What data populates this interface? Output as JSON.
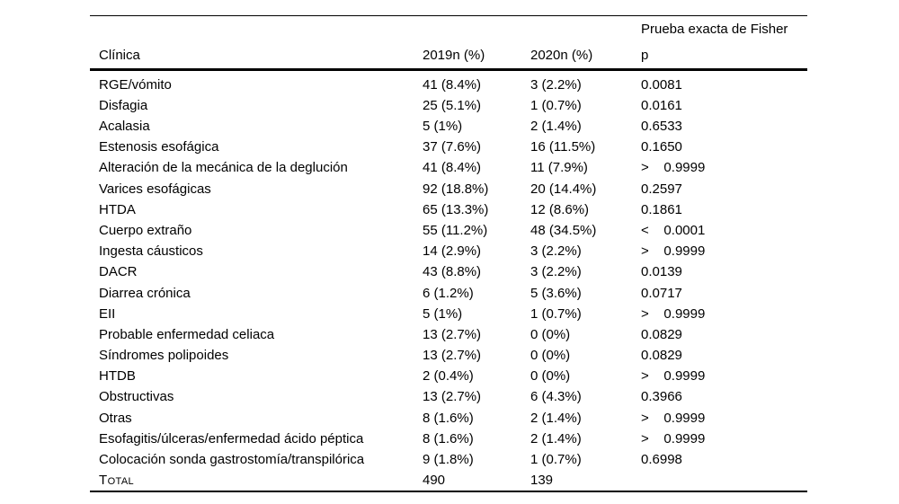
{
  "table": {
    "header": {
      "fisher_label": "Prueba exacta de Fisher",
      "col_clinica": "Clínica",
      "col_2019": "2019n (%)",
      "col_2020": "2020n (%)",
      "col_p": "p"
    },
    "rows": [
      {
        "clinica": "RGE/vómito",
        "y2019": "41 (8.4%)",
        "y2020": "3 (2.2%)",
        "p": "0.0081"
      },
      {
        "clinica": "Disfagia",
        "y2019": "25 (5.1%)",
        "y2020": "1 (0.7%)",
        "p": "0.0161"
      },
      {
        "clinica": "Acalasia",
        "y2019": "5 (1%)",
        "y2020": "2 (1.4%)",
        "p": "0.6533"
      },
      {
        "clinica": "Estenosis esofágica",
        "y2019": "37 (7.6%)",
        "y2020": "16 (11.5%)",
        "p": "0.1650"
      },
      {
        "clinica": "Alteración de la mecánica de la deglución",
        "y2019": "41 (8.4%)",
        "y2020": "11 (7.9%)",
        "p": ">    0.9999"
      },
      {
        "clinica": "Varices esofágicas",
        "y2019": "92 (18.8%)",
        "y2020": "20 (14.4%)",
        "p": "0.2597"
      },
      {
        "clinica": "HTDA",
        "y2019": "65 (13.3%)",
        "y2020": "12 (8.6%)",
        "p": "0.1861"
      },
      {
        "clinica": "Cuerpo extraño",
        "y2019": "55 (11.2%)",
        "y2020": "48 (34.5%)",
        "p": "<    0.0001"
      },
      {
        "clinica": "Ingesta cáusticos",
        "y2019": "14 (2.9%)",
        "y2020": "3 (2.2%)",
        "p": ">    0.9999"
      },
      {
        "clinica": "DACR",
        "y2019": "43 (8.8%)",
        "y2020": "3 (2.2%)",
        "p": "0.0139"
      },
      {
        "clinica": "Diarrea crónica",
        "y2019": "6 (1.2%)",
        "y2020": "5 (3.6%)",
        "p": "0.0717"
      },
      {
        "clinica": "EII",
        "y2019": "5 (1%)",
        "y2020": "1 (0.7%)",
        "p": ">    0.9999"
      },
      {
        "clinica": "Probable enfermedad celiaca",
        "y2019": "13 (2.7%)",
        "y2020": "0 (0%)",
        "p": "0.0829"
      },
      {
        "clinica": "Síndromes polipoides",
        "y2019": "13 (2.7%)",
        "y2020": "0 (0%)",
        "p": "0.0829"
      },
      {
        "clinica": "HTDB",
        "y2019": "2 (0.4%)",
        "y2020": "0 (0%)",
        "p": ">    0.9999"
      },
      {
        "clinica": "Obstructivas",
        "y2019": "13 (2.7%)",
        "y2020": "6 (4.3%)",
        "p": "0.3966"
      },
      {
        "clinica": "Otras",
        "y2019": "8 (1.6%)",
        "y2020": "2 (1.4%)",
        "p": ">    0.9999"
      },
      {
        "clinica": "Esofagitis/úlceras/enfermedad ácido péptica",
        "y2019": "8 (1.6%)",
        "y2020": "2 (1.4%)",
        "p": ">    0.9999"
      },
      {
        "clinica": "Colocación sonda gastrostomía/transpilórica",
        "y2019": "9 (1.8%)",
        "y2020": "1 (0.7%)",
        "p": "0.6998"
      },
      {
        "clinica": "Total",
        "y2019": "490",
        "y2020": "139",
        "p": "",
        "small_caps": true
      }
    ]
  },
  "colors": {
    "text": "#000000",
    "rule": "#000000",
    "background": "#ffffff"
  }
}
